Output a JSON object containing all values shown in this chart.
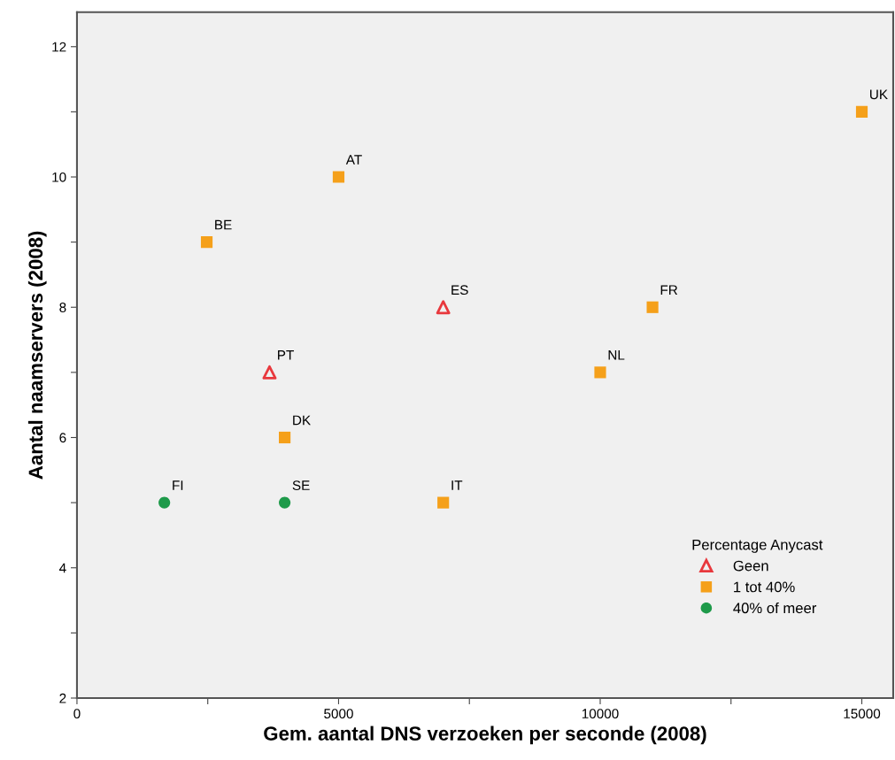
{
  "chart_data": {
    "type": "scatter",
    "xlabel": "Gem. aantal DNS verzoeken per seconde (2008)",
    "ylabel": "Aantal naamservers (2008)",
    "legend_title": "Percentage Anycast",
    "legend": "bottom right",
    "grid": false,
    "xlim": [
      0,
      15600
    ],
    "ylim": [
      2,
      12.53
    ],
    "xticks": [
      0,
      {
        "value": 2500,
        "label": null
      },
      5000,
      {
        "value": 7500,
        "label": null
      },
      10000,
      {
        "value": 12500,
        "label": null
      },
      15000
    ],
    "yticks": [
      2,
      {
        "value": 3,
        "label": null
      },
      4,
      {
        "value": 5,
        "label": null
      },
      6,
      {
        "value": 7,
        "label": null
      },
      8,
      {
        "value": 9,
        "label": null
      },
      10,
      {
        "value": 11,
        "label": null
      },
      12
    ],
    "series": [
      {
        "name": "Geen",
        "color": "#e8383d",
        "marker": "triangle",
        "x": [
          3680,
          7000
        ],
        "values": [
          7,
          8
        ]
      },
      {
        "name": "1 tot 40%",
        "color": "#f5a01a",
        "marker": "square",
        "x": [
          2480,
          3970,
          5000,
          7000,
          10000,
          11000,
          15000
        ],
        "values": [
          9,
          6,
          10,
          5,
          7,
          8,
          11
        ]
      },
      {
        "name": "40% of meer",
        "color": "#1e9a4a",
        "marker": "circle",
        "x": [
          1670,
          3970
        ],
        "values": [
          5,
          5
        ]
      }
    ],
    "annotations": [
      {
        "text": "FI",
        "x": 1670,
        "y": 5
      },
      {
        "text": "SE",
        "x": 3970,
        "y": 5
      },
      {
        "text": "DK",
        "x": 3970,
        "y": 6
      },
      {
        "text": "PT",
        "x": 3680,
        "y": 7
      },
      {
        "text": "BE",
        "x": 2480,
        "y": 9
      },
      {
        "text": "AT",
        "x": 5000,
        "y": 10
      },
      {
        "text": "ES",
        "x": 7000,
        "y": 8
      },
      {
        "text": "IT",
        "x": 7000,
        "y": 5
      },
      {
        "text": "NL",
        "x": 10000,
        "y": 7
      },
      {
        "text": "FR",
        "x": 11000,
        "y": 8
      },
      {
        "text": "UK",
        "x": 15000,
        "y": 11
      }
    ]
  }
}
